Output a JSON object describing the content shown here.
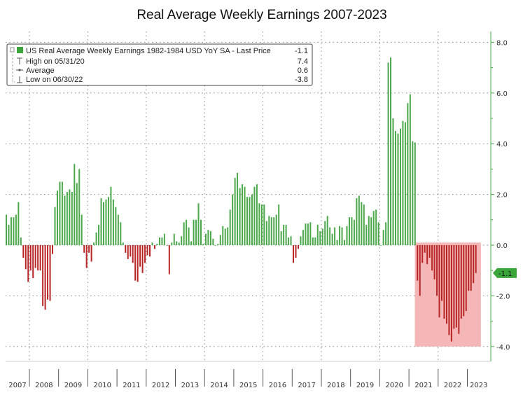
{
  "chart_data": {
    "type": "bar",
    "title": "Real Average Weekly Earnings 2007-2023",
    "frequency": "monthly",
    "start": "2007-03",
    "years": [
      "2007",
      "2008",
      "2009",
      "2010",
      "2011",
      "2012",
      "2013",
      "2014",
      "2015",
      "2016",
      "2017",
      "2018",
      "2019",
      "2020",
      "2021",
      "2022",
      "2023"
    ],
    "values": [
      1.2,
      0.8,
      1.1,
      1.1,
      1.2,
      1.7,
      0.3,
      -0.5,
      -0.95,
      -1.45,
      -1.0,
      -1.3,
      -0.9,
      -1.0,
      -1.0,
      -2.4,
      -2.55,
      -2.15,
      -2.2,
      -0.35,
      1.5,
      2.15,
      2.5,
      2.5,
      1.95,
      2.1,
      2.2,
      2.1,
      3.2,
      2.45,
      3.0,
      1.2,
      -0.3,
      -0.9,
      -0.3,
      -0.65,
      0.1,
      0.5,
      0.8,
      1.85,
      1.7,
      1.8,
      1.9,
      2.3,
      1.8,
      1.5,
      1.2,
      0.9,
      0.1,
      -0.3,
      -0.55,
      -0.45,
      -0.7,
      -1.4,
      -1.45,
      -0.85,
      -1.1,
      -0.7,
      -0.4,
      -0.45,
      0.1,
      -0.15,
      0.05,
      0.3,
      0.3,
      0.45,
      0.0,
      -1.15,
      0.1,
      0.45,
      0.15,
      0.1,
      0.35,
      0.9,
      1.0,
      0.7,
      0.15,
      1.0,
      1.0,
      1.65,
      1.0,
      0.05,
      0.45,
      0.6,
      0.55,
      0.25,
      0.0,
      0.05,
      0.4,
      0.75,
      0.65,
      0.7,
      1.4,
      2.0,
      2.65,
      2.85,
      2.25,
      2.4,
      2.3,
      1.9,
      1.9,
      2.0,
      2.3,
      2.4,
      1.65,
      1.6,
      1.6,
      0.95,
      1.15,
      1.1,
      1.1,
      1.2,
      1.6,
      0.55,
      0.8,
      0.8,
      0.3,
      0.35,
      -0.7,
      -0.5,
      -0.15,
      0.35,
      0.6,
      0.85,
      0.85,
      0.9,
      0.3,
      0.3,
      0.8,
      0.55,
      0.65,
      0.95,
      1.15,
      0.7,
      0.45,
      0.7,
      0.2,
      0.75,
      0.7,
      0.2,
      0.75,
      1.1,
      1.1,
      1.0,
      1.85,
      1.95,
      1.7,
      1.6,
      0.8,
      1.15,
      1.1,
      1.35,
      1.4,
      0.9,
      0.0,
      0.6,
      0.9,
      7.2,
      7.4,
      5.0,
      4.5,
      4.4,
      4.6,
      4.9,
      4.85,
      5.6,
      5.95,
      4.1,
      4.05,
      -1.4,
      -2.0,
      -0.7,
      -0.3,
      -0.75,
      -0.5,
      -1.0,
      -1.35,
      -2.0,
      -2.85,
      -2.2,
      -2.9,
      -3.1,
      -3.55,
      -3.8,
      -3.3,
      -3.25,
      -3.5,
      -2.9,
      -2.8,
      -2.6,
      -1.8,
      -1.8,
      -1.5,
      -1.1
    ],
    "ylim": [
      -4.4,
      8.3
    ],
    "yticks": [
      "8.0",
      "6.0",
      "4.0",
      "2.0",
      "0.0",
      "-2.0",
      "-4.0"
    ],
    "ytick_values": [
      8,
      6,
      4,
      2,
      0,
      -2,
      -4
    ],
    "last_price_label": "-1.1",
    "last_price": -1.1,
    "highlight": {
      "start_index": 169,
      "end_index": 194,
      "ymin": -4.0,
      "ymax": 0.1,
      "color": "#f4b6b6"
    },
    "colors": {
      "positive": "#4aa84a",
      "negative": "#b82525",
      "axis": "#4aa84a"
    },
    "legend": {
      "placement": "top-left",
      "series_label": "US Real Average Weekly Earnings 1982-1984 USD YoY SA - Last Price",
      "series_value": "-1.1",
      "rows": [
        {
          "label": "High on 05/31/20",
          "value": "7.4"
        },
        {
          "label": "Average",
          "value": "0.6"
        },
        {
          "label": "Low on 06/30/22",
          "value": "-3.8"
        }
      ]
    }
  }
}
